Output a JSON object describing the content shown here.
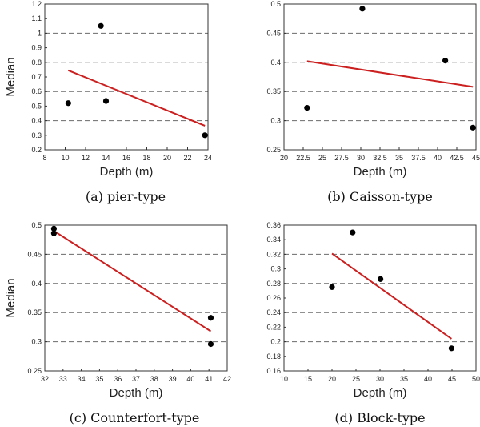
{
  "chart_data": [
    {
      "type": "scatter",
      "caption": "(a)  pier-type",
      "xlabel": "Depth (m)",
      "ylabel": "Median",
      "xlim": [
        8,
        24
      ],
      "ylim": [
        0.2,
        1.2
      ],
      "xticks": [
        8,
        10,
        12,
        14,
        16,
        18,
        20,
        22,
        24
      ],
      "yticks": [
        0.2,
        0.3,
        0.4,
        0.5,
        0.6,
        0.7,
        0.8,
        0.9,
        1,
        1.1,
        1.2
      ],
      "xtick_labels": [
        "8",
        "10",
        "12",
        "14",
        "16",
        "18",
        "20",
        "22",
        "24"
      ],
      "ytick_labels": [
        "0.2",
        "0.3",
        "0.4",
        "0.5",
        "0.6",
        "0.7",
        "0.8",
        "0.9",
        "1",
        "1.1",
        "1.2"
      ],
      "gridlines_y": [
        0.4,
        0.6,
        0.8,
        1.0
      ],
      "points": [
        {
          "x": 10.3,
          "y": 0.52
        },
        {
          "x": 13.5,
          "y": 1.05
        },
        {
          "x": 14.0,
          "y": 0.535
        },
        {
          "x": 23.7,
          "y": 0.3
        }
      ],
      "trendline": {
        "x": [
          10.3,
          23.7
        ],
        "y": [
          0.745,
          0.365
        ]
      },
      "colors": {
        "points": "#000000",
        "trendline": "#cc1f1f",
        "grid": "#6b6b6b"
      }
    },
    {
      "type": "scatter",
      "caption": "(b)  Caisson-type",
      "xlabel": "Depth (m)",
      "ylabel": "",
      "xlim": [
        20,
        45
      ],
      "ylim": [
        0.25,
        0.5
      ],
      "xticks": [
        20,
        22.5,
        25,
        27.5,
        30,
        32.5,
        35,
        37.5,
        40,
        42.5,
        45
      ],
      "yticks": [
        0.25,
        0.3,
        0.35,
        0.4,
        0.45,
        0.5
      ],
      "xtick_labels": [
        "20",
        "22.5",
        "25",
        "27.5",
        "30",
        "32.5",
        "35",
        "37.5",
        "40",
        "42.5",
        "45"
      ],
      "ytick_labels": [
        "0.25",
        "0.3",
        "0.35",
        "0.4",
        "0.45",
        "0.5"
      ],
      "gridlines_y": [
        0.3,
        0.35,
        0.4,
        0.45
      ],
      "points": [
        {
          "x": 23.0,
          "y": 0.322
        },
        {
          "x": 30.2,
          "y": 0.492
        },
        {
          "x": 41.0,
          "y": 0.403
        },
        {
          "x": 44.6,
          "y": 0.288
        }
      ],
      "trendline": {
        "x": [
          23.0,
          44.6
        ],
        "y": [
          0.402,
          0.358
        ]
      },
      "colors": {
        "points": "#000000",
        "trendline": "#cc1f1f",
        "grid": "#6b6b6b"
      }
    },
    {
      "type": "scatter",
      "caption": "(c)  Counterfort-type",
      "xlabel": "Depth (m)",
      "ylabel": "Median",
      "xlim": [
        32,
        42
      ],
      "ylim": [
        0.25,
        0.5
      ],
      "xticks": [
        32,
        33,
        34,
        35,
        36,
        37,
        38,
        39,
        40,
        41,
        42
      ],
      "yticks": [
        0.25,
        0.3,
        0.35,
        0.4,
        0.45,
        0.5
      ],
      "xtick_labels": [
        "32",
        "33",
        "34",
        "35",
        "36",
        "37",
        "38",
        "39",
        "40",
        "41",
        "42"
      ],
      "ytick_labels": [
        "0.25",
        "0.3",
        "0.35",
        "0.4",
        "0.45",
        "0.5"
      ],
      "gridlines_y": [
        0.3,
        0.35,
        0.4,
        0.45
      ],
      "points": [
        {
          "x": 32.5,
          "y": 0.494
        },
        {
          "x": 32.5,
          "y": 0.486
        },
        {
          "x": 41.1,
          "y": 0.341
        },
        {
          "x": 41.1,
          "y": 0.296
        }
      ],
      "trendline": {
        "x": [
          32.5,
          41.1
        ],
        "y": [
          0.49,
          0.318
        ]
      },
      "colors": {
        "points": "#000000",
        "trendline": "#cc1f1f",
        "grid": "#6b6b6b"
      }
    },
    {
      "type": "scatter",
      "caption": "(d)  Block-type",
      "xlabel": "Depth (m)",
      "ylabel": "",
      "xlim": [
        10,
        50
      ],
      "ylim": [
        0.16,
        0.36
      ],
      "xticks": [
        10,
        15,
        20,
        25,
        30,
        35,
        40,
        45,
        50
      ],
      "yticks": [
        0.16,
        0.18,
        0.2,
        0.22,
        0.24,
        0.26,
        0.28,
        0.3,
        0.32,
        0.34,
        0.36
      ],
      "xtick_labels": [
        "10",
        "15",
        "20",
        "25",
        "30",
        "35",
        "40",
        "45",
        "50"
      ],
      "ytick_labels": [
        "0.16",
        "0.18",
        "0.2",
        "0.22",
        "0.24",
        "0.26",
        "0.28",
        "0.3",
        "0.32",
        "0.34",
        "0.36"
      ],
      "gridlines_y": [
        0.2,
        0.24,
        0.28,
        0.32
      ],
      "points": [
        {
          "x": 20.0,
          "y": 0.275
        },
        {
          "x": 24.3,
          "y": 0.35
        },
        {
          "x": 30.1,
          "y": 0.286
        },
        {
          "x": 44.9,
          "y": 0.191
        }
      ],
      "trendline": {
        "x": [
          20.0,
          44.9
        ],
        "y": [
          0.321,
          0.204
        ]
      },
      "colors": {
        "points": "#000000",
        "trendline": "#cc1f1f",
        "grid": "#6b6b6b"
      }
    }
  ]
}
